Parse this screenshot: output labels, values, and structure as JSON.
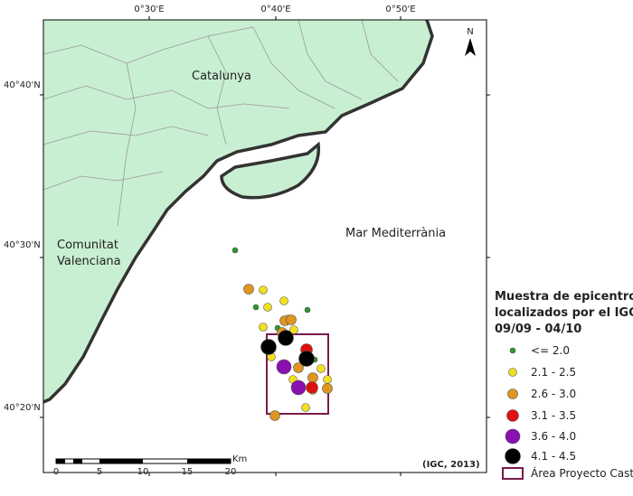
{
  "axes": {
    "top_labels": [
      "0°30'E",
      "0°40'E",
      "0°50'E"
    ],
    "left_labels": [
      "40°40'N",
      "40°30'N",
      "40°20'N"
    ]
  },
  "places": {
    "catalunya": "Catalunya",
    "sea": "Mar Mediterrània",
    "valenciana": [
      "Comunitat",
      "Valenciana"
    ]
  },
  "north": "N",
  "legend": {
    "title": [
      "Muestra de epicentros",
      "localizados por el IGC",
      "09/09 - 04/10"
    ],
    "items": [
      "<= 2.0",
      "2.1 - 2.5",
      "2.6 - 3.0",
      "3.1 - 3.5",
      "3.6 - 4.0",
      "4.1 - 4.5"
    ],
    "area": "Área Proyecto Castor"
  },
  "scale": {
    "ticks": [
      0,
      5,
      10,
      15,
      20
    ],
    "unit": "Km"
  },
  "source": "(IGC, 2013)"
}
